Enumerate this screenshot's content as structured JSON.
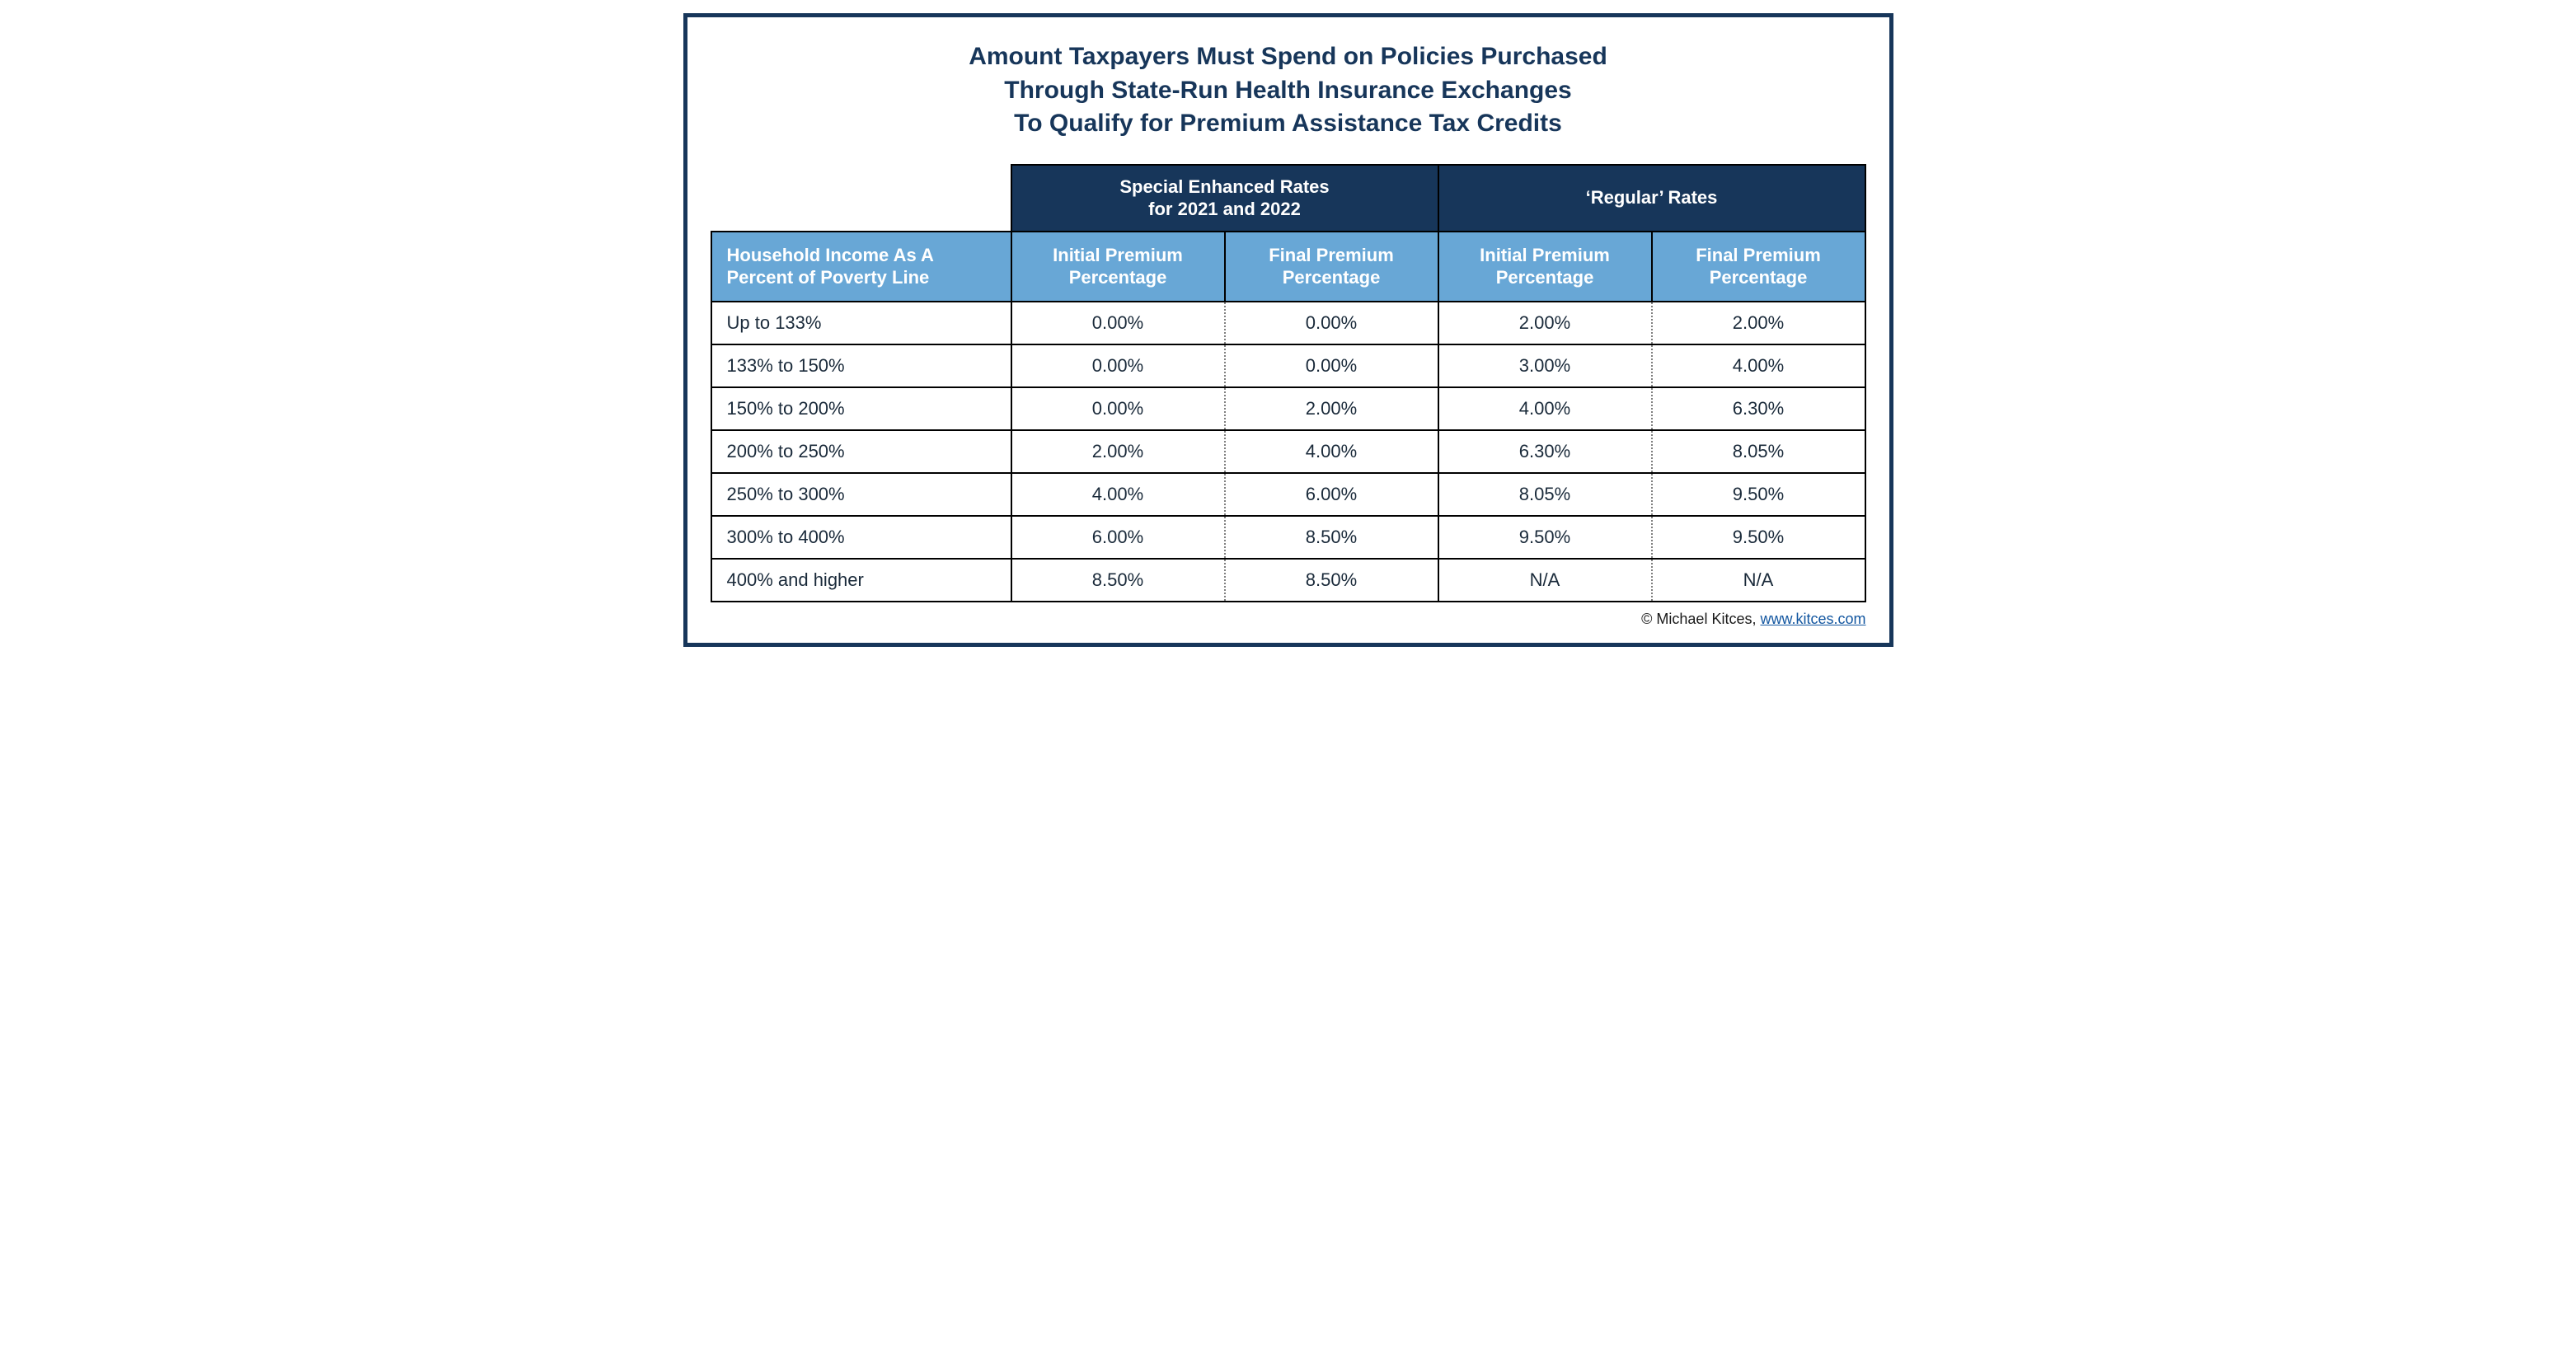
{
  "colors": {
    "frame_border": "#17365a",
    "title_text": "#17365a",
    "header1_bg": "#17365a",
    "header2_bg": "#68a7d6",
    "link": "#1256a0"
  },
  "title_lines": [
    "Amount Taxpayers Must Spend on Policies Purchased",
    "Through State-Run Health Insurance Exchanges",
    "To Qualify for Premium Assistance Tax Credits"
  ],
  "table": {
    "type": "table",
    "row_header_label": "Household Income As A Percent of Poverty Line",
    "groups": [
      {
        "label_lines": [
          "Special Enhanced Rates",
          "for 2021 and 2022"
        ],
        "sub": [
          "Initial Premium Percentage",
          "Final Premium Percentage"
        ]
      },
      {
        "label_lines": [
          "‘Regular’ Rates"
        ],
        "sub": [
          "Initial Premium Percentage",
          "Final Premium Percentage"
        ]
      }
    ],
    "column_widths_pct": [
      26,
      18.5,
      18.5,
      18.5,
      18.5
    ],
    "rows": [
      {
        "label": "Up to 133%",
        "values": [
          "0.00%",
          "0.00%",
          "2.00%",
          "2.00%"
        ]
      },
      {
        "label": "133% to 150%",
        "values": [
          "0.00%",
          "0.00%",
          "3.00%",
          "4.00%"
        ]
      },
      {
        "label": "150% to 200%",
        "values": [
          "0.00%",
          "2.00%",
          "4.00%",
          "6.30%"
        ]
      },
      {
        "label": "200% to 250%",
        "values": [
          "2.00%",
          "4.00%",
          "6.30%",
          "8.05%"
        ]
      },
      {
        "label": "250% to 300%",
        "values": [
          "4.00%",
          "6.00%",
          "8.05%",
          "9.50%"
        ]
      },
      {
        "label": "300% to 400%",
        "values": [
          "6.00%",
          "8.50%",
          "9.50%",
          "9.50%"
        ]
      },
      {
        "label": "400% and higher",
        "values": [
          "8.50%",
          "8.50%",
          "N/A",
          "N/A"
        ]
      }
    ]
  },
  "credit": {
    "prefix": "© Michael Kitces, ",
    "link_text": "www.kitces.com",
    "link_href": "https://www.kitces.com"
  }
}
